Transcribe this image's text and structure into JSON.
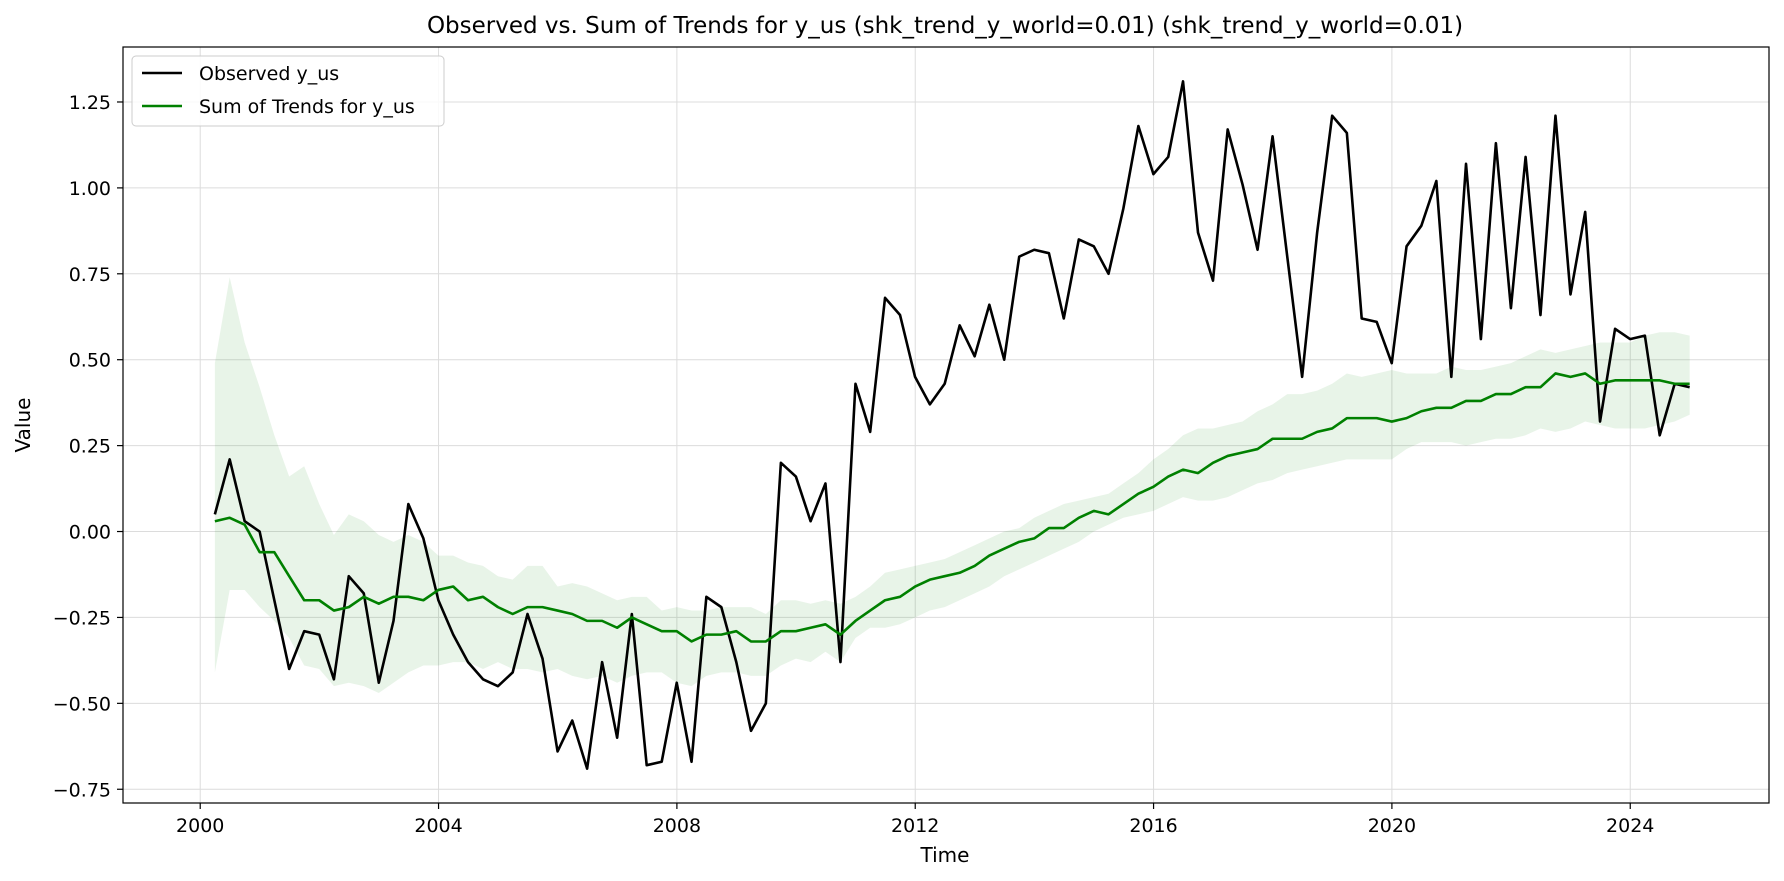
{
  "chart_data": {
    "type": "line",
    "title": "Observed vs. Sum of Trends for y_us (shk_trend_y_world=0.01) (shk_trend_y_world=0.01)",
    "xlabel": "Time",
    "ylabel": "Value",
    "xlim": [
      "1998-09-15",
      "2026-05-01"
    ],
    "ylim": [
      -0.79,
      1.41
    ],
    "x_ticks": [
      "2000",
      "2004",
      "2008",
      "2012",
      "2016",
      "2020",
      "2024"
    ],
    "y_ticks": [
      "−0.75",
      "−0.50",
      "−0.25",
      "0.00",
      "0.25",
      "0.50",
      "0.75",
      "1.00",
      "1.25"
    ],
    "grid": true,
    "legend_position": "top-left",
    "colors": {
      "observed": "#000000",
      "trend": "#008000",
      "band": "#008000"
    },
    "x": [
      "2000-03-31",
      "2000-06-30",
      "2000-09-30",
      "2000-12-31",
      "2001-03-31",
      "2001-06-30",
      "2001-09-30",
      "2001-12-31",
      "2002-03-31",
      "2002-06-30",
      "2002-09-30",
      "2002-12-31",
      "2003-03-31",
      "2003-06-30",
      "2003-09-30",
      "2003-12-31",
      "2004-03-31",
      "2004-06-30",
      "2004-09-30",
      "2004-12-31",
      "2005-03-31",
      "2005-06-30",
      "2005-09-30",
      "2005-12-31",
      "2006-03-31",
      "2006-06-30",
      "2006-09-30",
      "2006-12-31",
      "2007-03-31",
      "2007-06-30",
      "2007-09-30",
      "2007-12-31",
      "2008-03-31",
      "2008-06-30",
      "2008-09-30",
      "2008-12-31",
      "2009-03-31",
      "2009-06-30",
      "2009-09-30",
      "2009-12-31",
      "2010-03-31",
      "2010-06-30",
      "2010-09-30",
      "2010-12-31",
      "2011-03-31",
      "2011-06-30",
      "2011-09-30",
      "2011-12-31",
      "2012-03-31",
      "2012-06-30",
      "2012-09-30",
      "2012-12-31",
      "2013-03-31",
      "2013-06-30",
      "2013-09-30",
      "2013-12-31",
      "2014-03-31",
      "2014-06-30",
      "2014-09-30",
      "2014-12-31",
      "2015-03-31",
      "2015-06-30",
      "2015-09-30",
      "2015-12-31",
      "2016-03-31",
      "2016-06-30",
      "2016-09-30",
      "2016-12-31",
      "2017-03-31",
      "2017-06-30",
      "2017-09-30",
      "2017-12-31",
      "2018-03-31",
      "2018-06-30",
      "2018-09-30",
      "2018-12-31",
      "2019-03-31",
      "2019-06-30",
      "2019-09-30",
      "2019-12-31",
      "2020-03-31",
      "2020-06-30",
      "2020-09-30",
      "2020-12-31",
      "2021-03-31",
      "2021-06-30",
      "2021-09-30",
      "2021-12-31",
      "2022-03-31",
      "2022-06-30",
      "2022-09-30",
      "2022-12-31",
      "2023-03-31",
      "2023-06-30",
      "2023-09-30",
      "2023-12-31",
      "2024-03-31",
      "2024-06-30",
      "2024-09-30",
      "2024-12-31"
    ],
    "series": [
      {
        "name": "Observed y_us",
        "values": [
          0.05,
          0.21,
          0.03,
          0.0,
          -0.2,
          -0.4,
          -0.29,
          -0.3,
          -0.43,
          -0.13,
          -0.18,
          -0.44,
          -0.26,
          0.08,
          -0.02,
          -0.2,
          -0.3,
          -0.38,
          -0.43,
          -0.45,
          -0.41,
          -0.24,
          -0.37,
          -0.64,
          -0.55,
          -0.69,
          -0.38,
          -0.6,
          -0.24,
          -0.68,
          -0.67,
          -0.44,
          -0.67,
          -0.19,
          -0.22,
          -0.38,
          -0.58,
          -0.5,
          0.2,
          0.16,
          0.03,
          0.14,
          -0.38,
          0.43,
          0.29,
          0.68,
          0.63,
          0.45,
          0.37,
          0.43,
          0.6,
          0.51,
          0.66,
          0.5,
          0.8,
          0.82,
          0.81,
          0.62,
          0.85,
          0.83,
          0.75,
          0.94,
          1.18,
          1.04,
          1.09,
          1.31,
          0.87,
          0.73,
          1.17,
          1.01,
          0.82,
          1.15,
          0.8,
          0.45,
          0.87,
          1.21,
          1.16,
          0.62,
          0.61,
          0.49,
          0.83,
          0.89,
          1.02,
          0.45,
          1.07,
          0.56,
          1.13,
          0.65,
          1.09,
          0.63,
          1.21,
          0.69,
          0.93,
          0.32,
          0.59,
          0.56,
          0.57,
          0.28,
          0.43,
          0.42
        ]
      },
      {
        "name": "Sum of Trends for y_us",
        "values": [
          0.03,
          0.04,
          0.02,
          -0.06,
          -0.06,
          -0.13,
          -0.2,
          -0.2,
          -0.23,
          -0.22,
          -0.19,
          -0.21,
          -0.19,
          -0.19,
          -0.2,
          -0.17,
          -0.16,
          -0.2,
          -0.19,
          -0.22,
          -0.24,
          -0.22,
          -0.22,
          -0.23,
          -0.24,
          -0.26,
          -0.26,
          -0.28,
          -0.25,
          -0.27,
          -0.29,
          -0.29,
          -0.32,
          -0.3,
          -0.3,
          -0.29,
          -0.32,
          -0.32,
          -0.29,
          -0.29,
          -0.28,
          -0.27,
          -0.3,
          -0.26,
          -0.23,
          -0.2,
          -0.19,
          -0.16,
          -0.14,
          -0.13,
          -0.12,
          -0.1,
          -0.07,
          -0.05,
          -0.03,
          -0.02,
          0.01,
          0.01,
          0.04,
          0.06,
          0.05,
          0.08,
          0.11,
          0.13,
          0.16,
          0.18,
          0.17,
          0.2,
          0.22,
          0.23,
          0.24,
          0.27,
          0.27,
          0.27,
          0.29,
          0.3,
          0.33,
          0.33,
          0.33,
          0.32,
          0.33,
          0.35,
          0.36,
          0.36,
          0.38,
          0.38,
          0.4,
          0.4,
          0.42,
          0.42,
          0.46,
          0.45,
          0.46,
          0.43,
          0.44,
          0.44,
          0.44,
          0.44,
          0.43,
          0.43
        ]
      }
    ],
    "band": {
      "upper": [
        0.49,
        0.74,
        0.55,
        0.42,
        0.28,
        0.16,
        0.19,
        0.08,
        -0.01,
        0.05,
        0.03,
        -0.01,
        -0.03,
        -0.01,
        -0.03,
        -0.07,
        -0.07,
        -0.09,
        -0.1,
        -0.13,
        -0.14,
        -0.1,
        -0.1,
        -0.16,
        -0.15,
        -0.16,
        -0.18,
        -0.2,
        -0.19,
        -0.19,
        -0.23,
        -0.22,
        -0.23,
        -0.23,
        -0.22,
        -0.22,
        -0.22,
        -0.24,
        -0.2,
        -0.2,
        -0.21,
        -0.2,
        -0.21,
        -0.19,
        -0.16,
        -0.12,
        -0.11,
        -0.1,
        -0.09,
        -0.08,
        -0.06,
        -0.04,
        -0.02,
        0.0,
        0.01,
        0.04,
        0.06,
        0.08,
        0.09,
        0.1,
        0.11,
        0.14,
        0.17,
        0.21,
        0.24,
        0.28,
        0.3,
        0.3,
        0.31,
        0.32,
        0.35,
        0.37,
        0.4,
        0.4,
        0.41,
        0.43,
        0.46,
        0.45,
        0.46,
        0.47,
        0.46,
        0.46,
        0.46,
        0.48,
        0.47,
        0.47,
        0.48,
        0.49,
        0.51,
        0.53,
        0.52,
        0.53,
        0.54,
        0.55,
        0.55,
        0.55,
        0.57,
        0.58,
        0.58,
        0.57
      ],
      "lower": [
        -0.41,
        -0.17,
        -0.17,
        -0.22,
        -0.26,
        -0.31,
        -0.39,
        -0.4,
        -0.45,
        -0.44,
        -0.45,
        -0.47,
        -0.44,
        -0.41,
        -0.39,
        -0.39,
        -0.38,
        -0.38,
        -0.4,
        -0.38,
        -0.4,
        -0.4,
        -0.41,
        -0.4,
        -0.42,
        -0.43,
        -0.42,
        -0.44,
        -0.42,
        -0.41,
        -0.41,
        -0.44,
        -0.45,
        -0.42,
        -0.41,
        -0.41,
        -0.42,
        -0.42,
        -0.39,
        -0.37,
        -0.38,
        -0.35,
        -0.38,
        -0.31,
        -0.28,
        -0.28,
        -0.27,
        -0.25,
        -0.23,
        -0.22,
        -0.2,
        -0.18,
        -0.16,
        -0.13,
        -0.11,
        -0.09,
        -0.07,
        -0.05,
        -0.03,
        0.0,
        0.02,
        0.04,
        0.05,
        0.06,
        0.08,
        0.1,
        0.09,
        0.09,
        0.1,
        0.12,
        0.14,
        0.15,
        0.17,
        0.18,
        0.19,
        0.2,
        0.21,
        0.21,
        0.21,
        0.21,
        0.24,
        0.26,
        0.26,
        0.26,
        0.25,
        0.26,
        0.27,
        0.27,
        0.28,
        0.3,
        0.29,
        0.3,
        0.32,
        0.31,
        0.3,
        0.3,
        0.3,
        0.31,
        0.32,
        0.34
      ]
    }
  }
}
